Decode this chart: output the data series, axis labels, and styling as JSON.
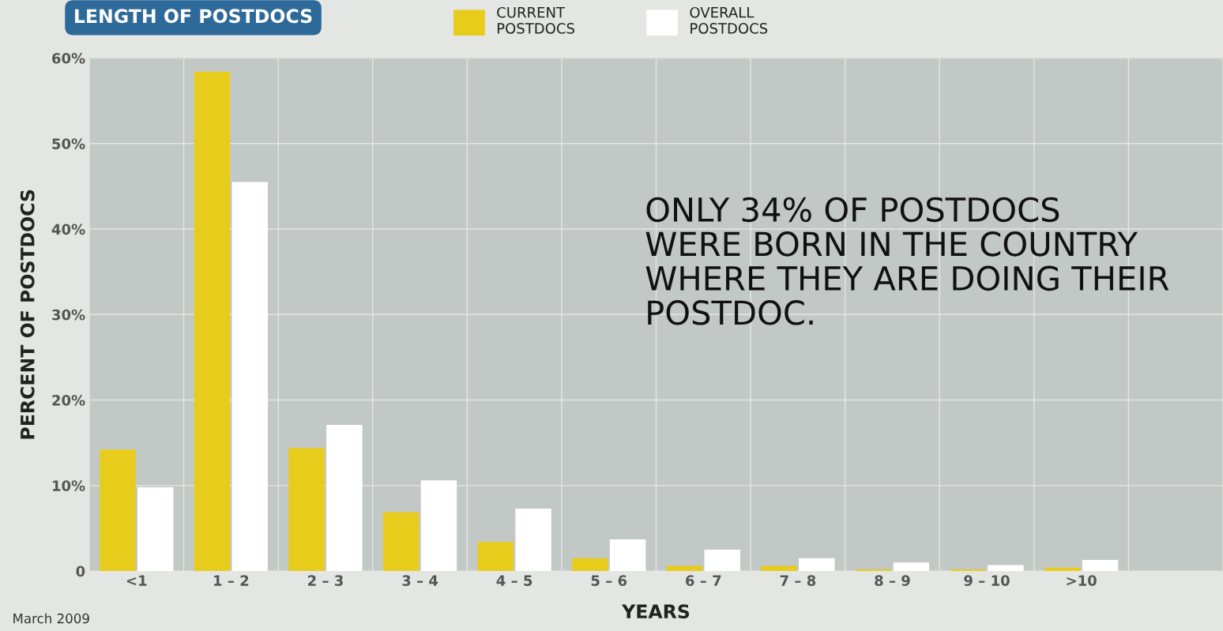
{
  "chart_data": {
    "type": "bar",
    "title": "LENGTH OF POSTDOCS",
    "xlabel": "YEARS",
    "ylabel": "PERCENT OF POSTDOCS",
    "categories": [
      "<1",
      "1 – 2",
      "2 – 3",
      "3 – 4",
      "4 – 5",
      "5 – 6",
      "6 – 7",
      "7 – 8",
      "8 – 9",
      "9 – 10",
      ">10"
    ],
    "series": [
      {
        "name": "CURRENT\nPOSTDOCS",
        "color": "#e8cc1c",
        "values": [
          14.2,
          58.4,
          14.4,
          6.9,
          3.4,
          1.5,
          0.6,
          0.6,
          0.2,
          0.2,
          0.4
        ]
      },
      {
        "name": "OVERALL\nPOSTDOCS",
        "color": "#ffffff",
        "values": [
          9.8,
          45.5,
          17.1,
          10.6,
          7.3,
          3.7,
          2.5,
          1.5,
          1.0,
          0.7,
          1.3
        ]
      }
    ],
    "ylim": [
      0,
      60
    ],
    "yticks": [
      {
        "value": 0,
        "label": "0"
      },
      {
        "value": 10,
        "label": "10%"
      },
      {
        "value": 20,
        "label": "20%"
      },
      {
        "value": 30,
        "label": "30%"
      },
      {
        "value": 40,
        "label": "40%"
      },
      {
        "value": 50,
        "label": "50%"
      },
      {
        "value": 60,
        "label": "60%"
      }
    ],
    "grid": true,
    "legend": "top",
    "annotations": [
      "ONLY 34% OF POSTDOCS\nWERE BORN IN THE COUNTRY\nWHERE THEY ARE DOING THEIR\nPOSTDOC.",
      "March 2009"
    ]
  }
}
